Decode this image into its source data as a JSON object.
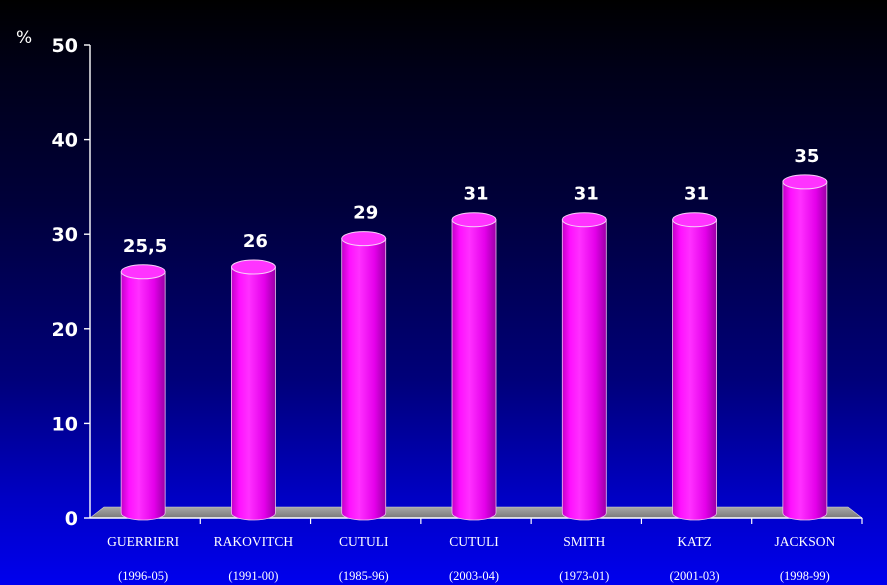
{
  "chart_data": {
    "type": "bar",
    "categories": [
      "GUERRIERI",
      "RAKOVITCH",
      "CUTULI",
      "CUTULI",
      "SMITH",
      "KATZ",
      "JACKSON"
    ],
    "category_periods": [
      "(1996-05)",
      "(1991-00)",
      "(1985-96)",
      "(2003-04)",
      "(1973-01)",
      "(2001-03)",
      "(1998-99)"
    ],
    "values": [
      25.5,
      26,
      29,
      31,
      31,
      31,
      35
    ],
    "value_labels": [
      "25,5",
      "26",
      "29",
      "31",
      "31",
      "31",
      "35"
    ],
    "ylabel": "%",
    "ylim": [
      0,
      50
    ],
    "yticks": [
      "0",
      "10",
      "20",
      "30",
      "40",
      "50"
    ],
    "grid": false,
    "legend": "none",
    "bar_style": "3d-cylinder",
    "colors": {
      "bar": "#ff00ff",
      "bar_dark": "#a000b0",
      "floor": "#8c8c8c",
      "text": "#ffffff"
    }
  }
}
